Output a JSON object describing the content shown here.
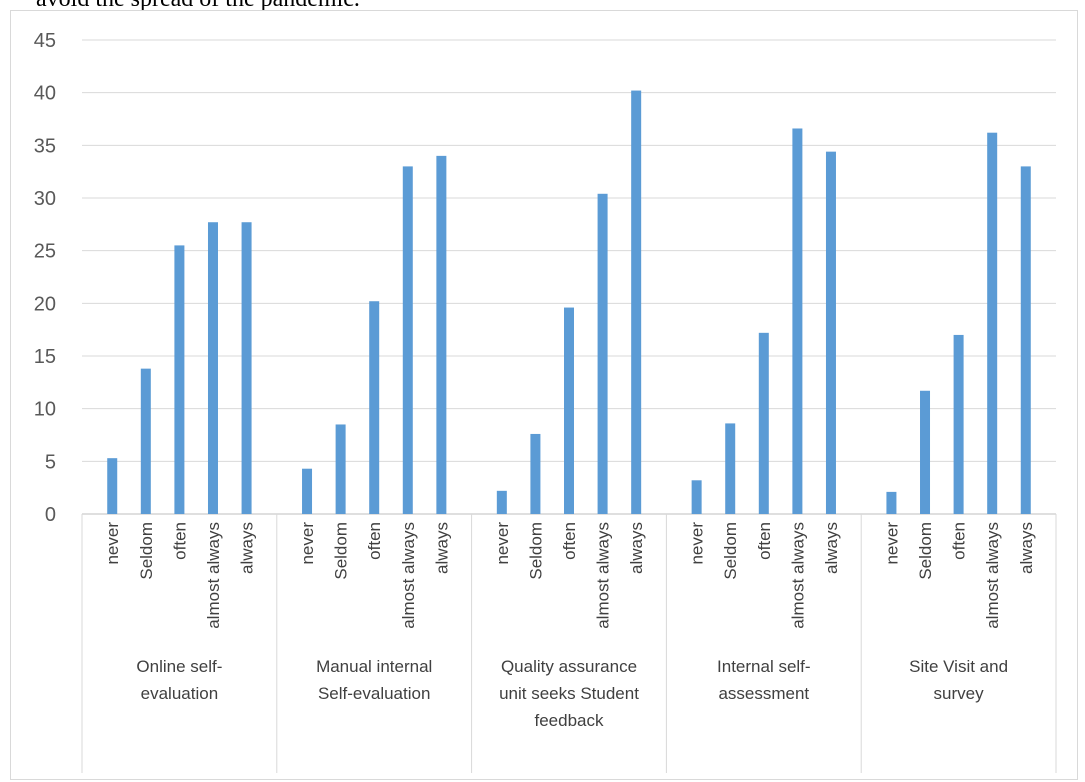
{
  "caption_fragment": "avoid the spread of the pandemic.",
  "chart_data": {
    "type": "bar",
    "title": "",
    "xlabel": "",
    "ylabel": "",
    "ylim": [
      0,
      45
    ],
    "yticks": [
      "0",
      "5",
      "10",
      "15",
      "20",
      "25",
      "30",
      "35",
      "40",
      "45"
    ],
    "grid": true,
    "legend": "none",
    "color": "#5b9bd5",
    "groups": [
      {
        "label_lines": [
          "Online self-",
          "evaluation"
        ],
        "bars": [
          {
            "category": "never",
            "value": 5.3
          },
          {
            "category": "Seldom",
            "value": 13.8
          },
          {
            "category": "often",
            "value": 25.5
          },
          {
            "category": "almost always",
            "value": 27.7
          },
          {
            "category": "always",
            "value": 27.7
          }
        ]
      },
      {
        "label_lines": [
          "Manual internal",
          "Self-evaluation"
        ],
        "bars": [
          {
            "category": "never",
            "value": 4.3
          },
          {
            "category": "Seldom",
            "value": 8.5
          },
          {
            "category": "often",
            "value": 20.2
          },
          {
            "category": "almost always",
            "value": 33.0
          },
          {
            "category": "always",
            "value": 34.0
          }
        ]
      },
      {
        "label_lines": [
          "Quality assurance",
          "unit seeks Student",
          "feedback"
        ],
        "bars": [
          {
            "category": "never",
            "value": 2.2
          },
          {
            "category": "Seldom",
            "value": 7.6
          },
          {
            "category": "often",
            "value": 19.6
          },
          {
            "category": "almost always",
            "value": 30.4
          },
          {
            "category": "always",
            "value": 40.2
          }
        ]
      },
      {
        "label_lines": [
          "Internal self-",
          "assessment"
        ],
        "bars": [
          {
            "category": "never",
            "value": 3.2
          },
          {
            "category": "Seldom",
            "value": 8.6
          },
          {
            "category": "often",
            "value": 17.2
          },
          {
            "category": "almost always",
            "value": 36.6
          },
          {
            "category": "always",
            "value": 34.4
          }
        ]
      },
      {
        "label_lines": [
          "Site Visit and",
          "survey"
        ],
        "bars": [
          {
            "category": "never",
            "value": 2.1
          },
          {
            "category": "Seldom",
            "value": 11.7
          },
          {
            "category": "often",
            "value": 17.0
          },
          {
            "category": "almost always",
            "value": 36.2
          },
          {
            "category": "always",
            "value": 33.0
          }
        ]
      }
    ]
  }
}
